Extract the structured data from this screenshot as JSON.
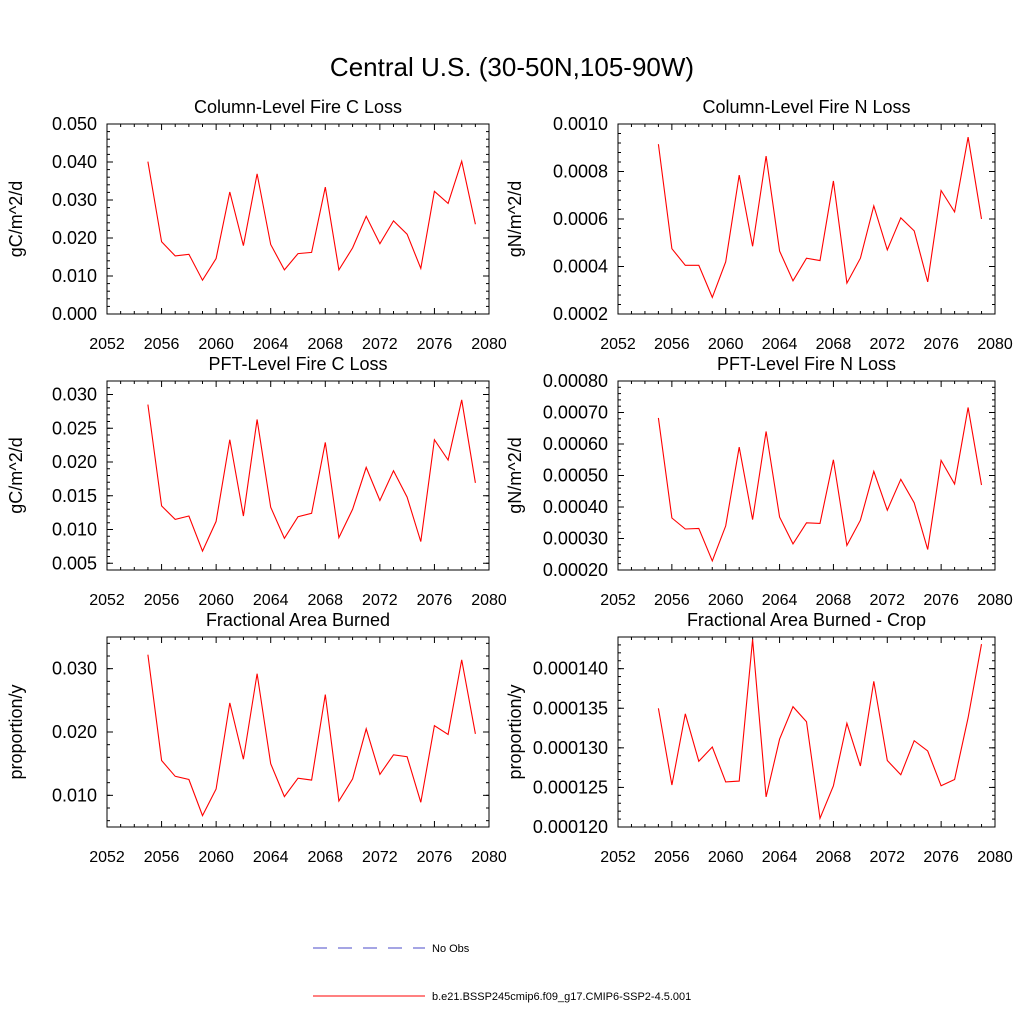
{
  "title": "Central U.S. (30-50N,105-90W)",
  "chart_data": [
    {
      "type": "line",
      "title": "Column-Level Fire C Loss",
      "ylabel": "gC/m^2/d",
      "xlim": [
        2052,
        2080
      ],
      "ylim": [
        0,
        0.05
      ],
      "xticks": [
        "2052",
        "2056",
        "2060",
        "2064",
        "2068",
        "2072",
        "2076",
        "2080"
      ],
      "yticks": [
        "0.000",
        "0.010",
        "0.020",
        "0.030",
        "0.040",
        "0.050"
      ],
      "x": [
        2055,
        2056,
        2057,
        2058,
        2059,
        2060,
        2061,
        2062,
        2063,
        2064,
        2065,
        2066,
        2067,
        2068,
        2069,
        2070,
        2071,
        2072,
        2073,
        2074,
        2075,
        2076,
        2077,
        2078,
        2079
      ],
      "series": [
        {
          "name": "b.e21.BSSP245cmip6.f09_g17.CMIP6-SSP2-4.5.001",
          "color": "#ff0000",
          "values": [
            0.0401,
            0.019,
            0.0153,
            0.0157,
            0.0089,
            0.0146,
            0.0321,
            0.018,
            0.0369,
            0.0183,
            0.0116,
            0.0159,
            0.0162,
            0.0334,
            0.0116,
            0.0174,
            0.0257,
            0.0185,
            0.0245,
            0.021,
            0.012,
            0.0323,
            0.0291,
            0.0402,
            0.0236
          ]
        }
      ]
    },
    {
      "type": "line",
      "title": "Column-Level Fire N Loss",
      "ylabel": "gN/m^2/d",
      "xlim": [
        2052,
        2080
      ],
      "ylim": [
        0.0002,
        0.001
      ],
      "xticks": [
        "2052",
        "2056",
        "2060",
        "2064",
        "2068",
        "2072",
        "2076",
        "2080"
      ],
      "yticks": [
        "0.0002",
        "0.0004",
        "0.0006",
        "0.0008",
        "0.0010"
      ],
      "x": [
        2055,
        2056,
        2057,
        2058,
        2059,
        2060,
        2061,
        2062,
        2063,
        2064,
        2065,
        2066,
        2067,
        2068,
        2069,
        2070,
        2071,
        2072,
        2073,
        2074,
        2075,
        2076,
        2077,
        2078,
        2079
      ],
      "series": [
        {
          "name": "b.e21.BSSP245cmip6.f09_g17.CMIP6-SSP2-4.5.001",
          "color": "#ff0000",
          "values": [
            0.000915,
            0.000475,
            0.000405,
            0.000405,
            0.00027,
            0.00042,
            0.000785,
            0.000485,
            0.000865,
            0.000465,
            0.00034,
            0.000435,
            0.000425,
            0.00076,
            0.00033,
            0.000435,
            0.000655,
            0.00047,
            0.000605,
            0.00055,
            0.000335,
            0.00072,
            0.00063,
            0.000945,
            0.0006
          ]
        }
      ]
    },
    {
      "type": "line",
      "title": "PFT-Level Fire C Loss",
      "ylabel": "gC/m^2/d",
      "xlim": [
        2052,
        2080
      ],
      "ylim": [
        0.004,
        0.032
      ],
      "xticks": [
        "2052",
        "2056",
        "2060",
        "2064",
        "2068",
        "2072",
        "2076",
        "2080"
      ],
      "yticks": [
        "0.005",
        "0.010",
        "0.015",
        "0.020",
        "0.025",
        "0.030"
      ],
      "x": [
        2055,
        2056,
        2057,
        2058,
        2059,
        2060,
        2061,
        2062,
        2063,
        2064,
        2065,
        2066,
        2067,
        2068,
        2069,
        2070,
        2071,
        2072,
        2073,
        2074,
        2075,
        2076,
        2077,
        2078,
        2079
      ],
      "series": [
        {
          "name": "b.e21.BSSP245cmip6.f09_g17.CMIP6-SSP2-4.5.001",
          "color": "#ff0000",
          "values": [
            0.0285,
            0.0135,
            0.0115,
            0.012,
            0.0068,
            0.0112,
            0.0233,
            0.012,
            0.0263,
            0.0133,
            0.0087,
            0.0119,
            0.0124,
            0.0229,
            0.0088,
            0.013,
            0.0192,
            0.0143,
            0.0187,
            0.0148,
            0.0082,
            0.0233,
            0.0203,
            0.0292,
            0.0169
          ]
        }
      ]
    },
    {
      "type": "line",
      "title": "PFT-Level Fire N Loss",
      "ylabel": "gN/m^2/d",
      "xlim": [
        2052,
        2080
      ],
      "ylim": [
        0.0002,
        0.0008
      ],
      "xticks": [
        "2052",
        "2056",
        "2060",
        "2064",
        "2068",
        "2072",
        "2076",
        "2080"
      ],
      "yticks": [
        "0.00020",
        "0.00030",
        "0.00040",
        "0.00050",
        "0.00060",
        "0.00070",
        "0.00080"
      ],
      "x": [
        2055,
        2056,
        2057,
        2058,
        2059,
        2060,
        2061,
        2062,
        2063,
        2064,
        2065,
        2066,
        2067,
        2068,
        2069,
        2070,
        2071,
        2072,
        2073,
        2074,
        2075,
        2076,
        2077,
        2078,
        2079
      ],
      "series": [
        {
          "name": "b.e21.BSSP245cmip6.f09_g17.CMIP6-SSP2-4.5.001",
          "color": "#ff0000",
          "values": [
            0.000683,
            0.000365,
            0.00033,
            0.000332,
            0.000229,
            0.00034,
            0.00059,
            0.00036,
            0.00064,
            0.000368,
            0.000283,
            0.00035,
            0.000348,
            0.00055,
            0.000278,
            0.000358,
            0.000513,
            0.00039,
            0.000488,
            0.000413,
            0.000265,
            0.000548,
            0.000473,
            0.000716,
            0.00047
          ]
        }
      ]
    },
    {
      "type": "line",
      "title": "Fractional Area Burned",
      "ylabel": "proportion/y",
      "xlim": [
        2052,
        2080
      ],
      "ylim": [
        0.005,
        0.035
      ],
      "xticks": [
        "2052",
        "2056",
        "2060",
        "2064",
        "2068",
        "2072",
        "2076",
        "2080"
      ],
      "yticks": [
        "0.010",
        "0.020",
        "0.030"
      ],
      "x": [
        2055,
        2056,
        2057,
        2058,
        2059,
        2060,
        2061,
        2062,
        2063,
        2064,
        2065,
        2066,
        2067,
        2068,
        2069,
        2070,
        2071,
        2072,
        2073,
        2074,
        2075,
        2076,
        2077,
        2078,
        2079
      ],
      "series": [
        {
          "name": "b.e21.BSSP245cmip6.f09_g17.CMIP6-SSP2-4.5.001",
          "color": "#ff0000",
          "values": [
            0.0322,
            0.0155,
            0.013,
            0.0125,
            0.0068,
            0.011,
            0.0246,
            0.0157,
            0.0292,
            0.015,
            0.0098,
            0.0127,
            0.0124,
            0.0259,
            0.0091,
            0.0126,
            0.0205,
            0.0133,
            0.0164,
            0.0161,
            0.0089,
            0.021,
            0.0196,
            0.0314,
            0.0197
          ]
        }
      ]
    },
    {
      "type": "line",
      "title": "Fractional Area Burned - Crop",
      "ylabel": "proportion/y",
      "xlim": [
        2052,
        2080
      ],
      "ylim": [
        0.00012,
        0.000144
      ],
      "xticks": [
        "2052",
        "2056",
        "2060",
        "2064",
        "2068",
        "2072",
        "2076",
        "2080"
      ],
      "yticks": [
        "0.000120",
        "0.000125",
        "0.000130",
        "0.000135",
        "0.000140"
      ],
      "x": [
        2055,
        2056,
        2057,
        2058,
        2059,
        2060,
        2061,
        2062,
        2063,
        2064,
        2065,
        2066,
        2067,
        2068,
        2069,
        2070,
        2071,
        2072,
        2073,
        2074,
        2075,
        2076,
        2077,
        2078,
        2079
      ],
      "series": [
        {
          "name": "b.e21.BSSP245cmip6.f09_g17.CMIP6-SSP2-4.5.001",
          "color": "#ff0000",
          "values": [
            0.000135,
            0.0001253,
            0.0001343,
            0.0001283,
            0.0001301,
            0.0001257,
            0.0001258,
            0.0001437,
            0.0001238,
            0.0001311,
            0.0001352,
            0.0001333,
            0.0001211,
            0.0001252,
            0.0001331,
            0.0001277,
            0.0001384,
            0.0001284,
            0.0001266,
            0.0001309,
            0.0001296,
            0.0001252,
            0.000126,
            0.0001338,
            0.0001431
          ]
        }
      ]
    }
  ],
  "legend": {
    "placement": "bottom",
    "entries": [
      {
        "label": "No Obs",
        "color": "#4b4bc8",
        "style": "dashed"
      },
      {
        "label": "b.e21.BSSP245cmip6.f09_g17.CMIP6-SSP2-4.5.001",
        "color": "#ff0000",
        "style": "solid"
      }
    ]
  }
}
